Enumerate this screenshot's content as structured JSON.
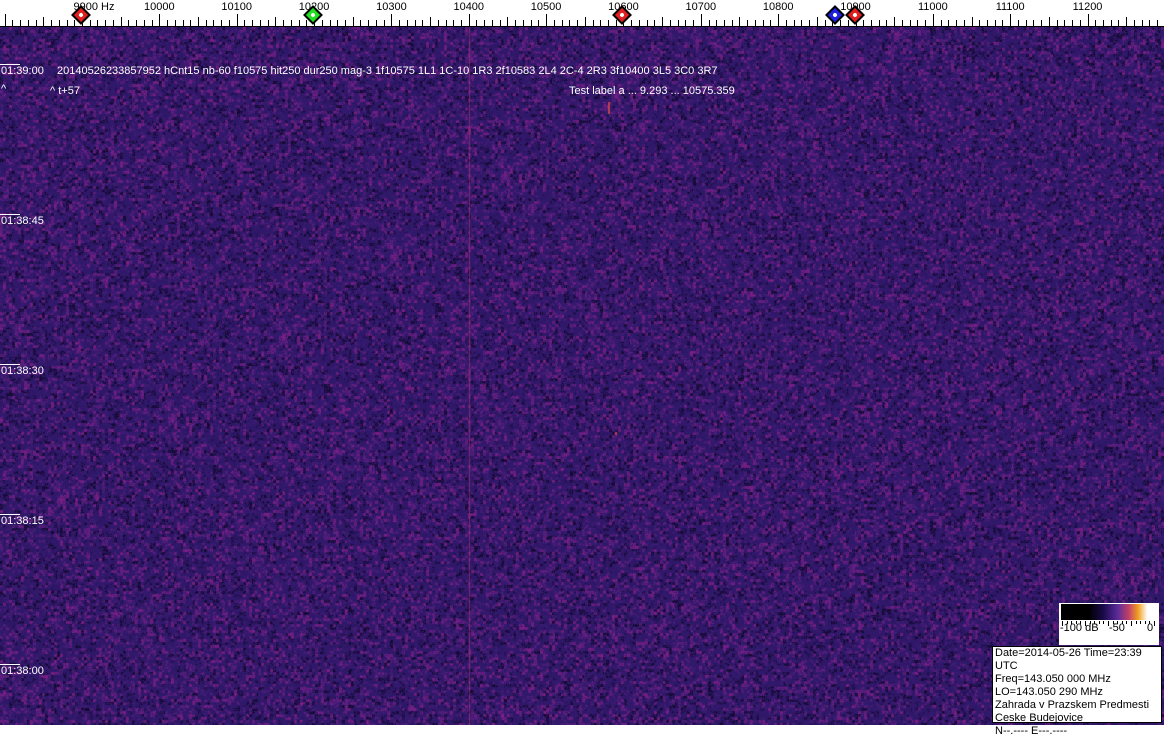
{
  "frequency_scale": {
    "labels": [
      {
        "freq": 9900,
        "text": "9900 Hz"
      },
      {
        "freq": 10000,
        "text": "10000"
      },
      {
        "freq": 10100,
        "text": "10100"
      },
      {
        "freq": 10200,
        "text": "10200"
      },
      {
        "freq": 10300,
        "text": "10300"
      },
      {
        "freq": 10400,
        "text": "10400"
      },
      {
        "freq": 10500,
        "text": "10500"
      },
      {
        "freq": 10600,
        "text": "10600"
      },
      {
        "freq": 10700,
        "text": "10700"
      },
      {
        "freq": 10800,
        "text": "10800"
      },
      {
        "freq": 10900,
        "text": "10900"
      },
      {
        "freq": 11000,
        "text": "11000"
      },
      {
        "freq": 11100,
        "text": "11100"
      },
      {
        "freq": 11200,
        "text": "11200"
      }
    ],
    "markers": [
      {
        "freq": 9900,
        "color": "#e02020"
      },
      {
        "freq": 10200,
        "color": "#20e020"
      },
      {
        "freq": 10600,
        "color": "#e02020"
      },
      {
        "freq": 10875,
        "color": "#2020e0"
      },
      {
        "freq": 10900,
        "color": "#e02020"
      }
    ]
  },
  "time_labels": [
    "01:39:00",
    "01:38:45",
    "01:38:30",
    "01:38:15",
    "01:38:00"
  ],
  "detection_line": "20140526233857952 hCnt15 nb-60 f10575 hit250 dur250 mag-3 1f10575 1L1 1C-10 1R3 2f10583 2L4 2C-4 2R3 3f10400 3L5 3C0 3R7",
  "caret_left": "^",
  "offset_label": "^ t+57",
  "test_label": "Test label a  ... 9.293  ...  10575.359",
  "colorbar": {
    "labels": [
      "-100 dB",
      "-50",
      "0"
    ]
  },
  "info": {
    "date_time": "Date=2014-05-26 Time=23:39 UTC",
    "freq": "Freq=143.050 000 MHz",
    "lo": "LO=143.050 290 MHz",
    "location1": "Zahrada v Prazskem Predmesti",
    "location2": "Ceske Budejovice",
    "coords": "N--.---- E---.----"
  },
  "colors": {
    "background": "#2a1660",
    "carrier_line": "#a03070"
  }
}
